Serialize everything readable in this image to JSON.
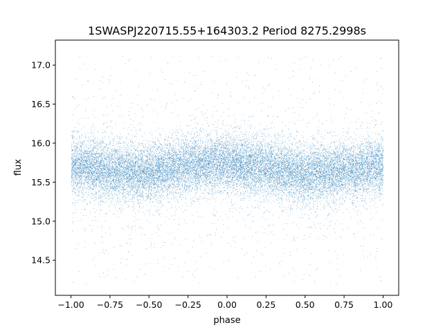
{
  "chart_data": {
    "type": "scatter",
    "title": "1SWASPJ220715.55+164303.2 Period 8275.2998s",
    "xlabel": "phase",
    "ylabel": "flux",
    "xlim": [
      -1.1,
      1.1
    ],
    "ylim": [
      14.05,
      17.32
    ],
    "x_ticks": [
      -1.0,
      -0.75,
      -0.5,
      -0.25,
      0.0,
      0.25,
      0.5,
      0.75,
      1.0
    ],
    "x_tick_labels": [
      "−1.00",
      "−0.75",
      "−0.50",
      "−0.25",
      "0.00",
      "0.25",
      "0.50",
      "0.75",
      "1.00"
    ],
    "y_ticks": [
      14.5,
      15.0,
      15.5,
      16.0,
      16.5,
      17.0
    ],
    "y_tick_labels": [
      "14.5",
      "15.0",
      "15.5",
      "16.0",
      "16.5",
      "17.0"
    ],
    "grid": false,
    "legend": "none",
    "marker_color": "#1f77b4",
    "phase_range": [
      -1.0,
      1.0
    ],
    "flux_range": [
      14.2,
      17.12
    ],
    "mean_curve": {
      "phase": [
        -1.0,
        -0.75,
        -0.5,
        -0.25,
        0.0,
        0.25,
        0.5,
        0.75,
        1.0
      ],
      "flux": [
        15.72,
        15.65,
        15.6,
        15.72,
        15.75,
        15.68,
        15.6,
        15.65,
        15.72
      ]
    },
    "typical_scatter": 0.18
  }
}
